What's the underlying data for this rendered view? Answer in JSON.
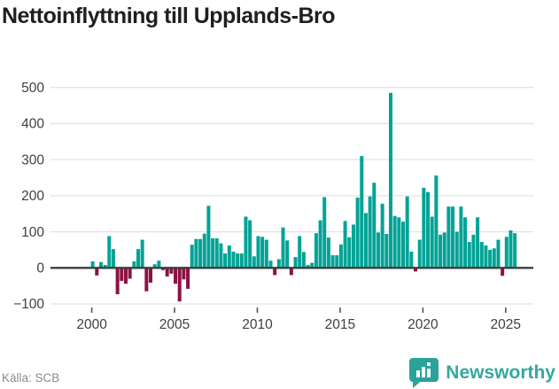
{
  "header": {
    "title": "Nettoinflyttning till Upplands-Bro"
  },
  "chart_data": {
    "type": "bar",
    "title": "Nettoinflyttning till Upplands-Bro",
    "x_unit": "quarter",
    "grid": true,
    "positive_color": "#00a396",
    "negative_color": "#8e1144",
    "zero_line_color": "#3c3c3c",
    "gridline_color": "#e3e3e3",
    "axis_text_color": "#404040",
    "ylim": [
      -100,
      500
    ],
    "yticks": [
      {
        "label": "500",
        "value": 500
      },
      {
        "label": "400",
        "value": 400
      },
      {
        "label": "300",
        "value": 300
      },
      {
        "label": "200",
        "value": 200
      },
      {
        "label": "100",
        "value": 100
      },
      {
        "label": "0",
        "value": 0
      },
      {
        "label": "−100",
        "value": -100
      }
    ],
    "xticks": [
      {
        "label": "2000",
        "year": 2000
      },
      {
        "label": "2005",
        "year": 2005
      },
      {
        "label": "2010",
        "year": 2010
      },
      {
        "label": "2015",
        "year": 2015
      },
      {
        "label": "2020",
        "year": 2020
      },
      {
        "label": "2025",
        "year": 2025
      }
    ],
    "categories": [
      "2000 Q1",
      "2000 Q2",
      "2000 Q3",
      "2000 Q4",
      "2001 Q1",
      "2001 Q2",
      "2001 Q3",
      "2001 Q4",
      "2002 Q1",
      "2002 Q2",
      "2002 Q3",
      "2002 Q4",
      "2003 Q1",
      "2003 Q2",
      "2003 Q3",
      "2003 Q4",
      "2004 Q1",
      "2004 Q2",
      "2004 Q3",
      "2004 Q4",
      "2005 Q1",
      "2005 Q2",
      "2005 Q3",
      "2005 Q4",
      "2006 Q1",
      "2006 Q2",
      "2006 Q3",
      "2006 Q4",
      "2007 Q1",
      "2007 Q2",
      "2007 Q3",
      "2007 Q4",
      "2008 Q1",
      "2008 Q2",
      "2008 Q3",
      "2008 Q4",
      "2009 Q1",
      "2009 Q2",
      "2009 Q3",
      "2009 Q4",
      "2010 Q1",
      "2010 Q2",
      "2010 Q3",
      "2010 Q4",
      "2011 Q1",
      "2011 Q2",
      "2011 Q3",
      "2011 Q4",
      "2012 Q1",
      "2012 Q2",
      "2012 Q3",
      "2012 Q4",
      "2013 Q1",
      "2013 Q2",
      "2013 Q3",
      "2013 Q4",
      "2014 Q1",
      "2014 Q2",
      "2014 Q3",
      "2014 Q4",
      "2015 Q1",
      "2015 Q2",
      "2015 Q3",
      "2015 Q4",
      "2016 Q1",
      "2016 Q2",
      "2016 Q3",
      "2016 Q4",
      "2017 Q1",
      "2017 Q2",
      "2017 Q3",
      "2017 Q4",
      "2018 Q1",
      "2018 Q2",
      "2018 Q3",
      "2018 Q4",
      "2019 Q1",
      "2019 Q2",
      "2019 Q3",
      "2019 Q4",
      "2020 Q1",
      "2020 Q2",
      "2020 Q3",
      "2020 Q4",
      "2021 Q1",
      "2021 Q2",
      "2021 Q3",
      "2021 Q4",
      "2022 Q1",
      "2022 Q2",
      "2022 Q3",
      "2022 Q4",
      "2023 Q1",
      "2023 Q2",
      "2023 Q3",
      "2023 Q4",
      "2024 Q1",
      "2024 Q2",
      "2024 Q3",
      "2024 Q4",
      "2025 Q1",
      "2025 Q2",
      "2025 Q3"
    ],
    "values": [
      18,
      -21,
      16,
      8,
      88,
      52,
      -73,
      -36,
      -44,
      -30,
      18,
      52,
      78,
      -65,
      -41,
      10,
      20,
      -6,
      -24,
      -16,
      -44,
      -93,
      -32,
      -58,
      64,
      80,
      80,
      95,
      172,
      82,
      82,
      68,
      40,
      62,
      45,
      40,
      40,
      142,
      132,
      32,
      88,
      86,
      78,
      20,
      -20,
      24,
      112,
      76,
      -20,
      30,
      88,
      44,
      8,
      14,
      96,
      132,
      196,
      84,
      35,
      35,
      65,
      130,
      85,
      120,
      195,
      310,
      152,
      198,
      236,
      98,
      178,
      94,
      485,
      144,
      140,
      128,
      198,
      45,
      -10,
      78,
      222,
      210,
      142,
      256,
      92,
      98,
      170,
      170,
      100,
      170,
      140,
      72,
      92,
      140,
      72,
      62,
      50,
      54,
      78,
      -22,
      86,
      104,
      96
    ]
  },
  "footer": {
    "source_label": "Källa: SCB",
    "brand_name": "Newsworthy",
    "brand_color": "#35a7a2"
  }
}
